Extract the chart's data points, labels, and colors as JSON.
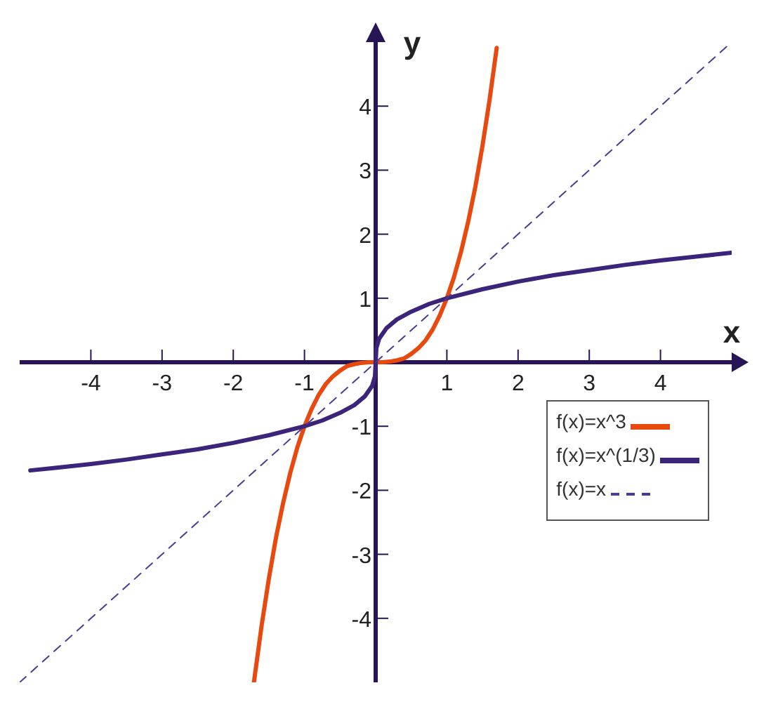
{
  "chart_data": {
    "type": "line",
    "xlabel": "x",
    "ylabel": "y",
    "xlim": [
      -5,
      5
    ],
    "ylim": [
      -5,
      5
    ],
    "xticks": [
      -4,
      -3,
      -2,
      -1,
      1,
      2,
      3,
      4
    ],
    "yticks": [
      -4,
      -3,
      -2,
      -1,
      1,
      2,
      3,
      4
    ],
    "grid": false,
    "legend": "bottom right",
    "marker": "none",
    "series": [
      {
        "name": "f(x)=x^3",
        "color": "#e8490f",
        "line_style": "solid",
        "x": [
          -1.71,
          -1.6,
          -1.5,
          -1.4,
          -1.3,
          -1.2,
          -1.1,
          -1,
          -0.9,
          -0.8,
          -0.7,
          -0.6,
          -0.5,
          -0.4,
          -0.3,
          -0.2,
          -0.1,
          0,
          0.1,
          0.2,
          0.3,
          0.4,
          0.5,
          0.6,
          0.7,
          0.8,
          0.9,
          1,
          1.1,
          1.2,
          1.3,
          1.4,
          1.5,
          1.6,
          1.7
        ],
        "values": [
          -5,
          -4.1,
          -3.38,
          -2.74,
          -2.2,
          -1.73,
          -1.33,
          -1,
          -0.73,
          -0.51,
          -0.34,
          -0.22,
          -0.13,
          -0.06,
          -0.03,
          -0.01,
          0,
          0,
          0,
          0.01,
          0.03,
          0.06,
          0.13,
          0.22,
          0.34,
          0.51,
          0.73,
          1,
          1.33,
          1.73,
          2.2,
          2.74,
          3.38,
          4.1,
          4.91
        ]
      },
      {
        "name": "f(x)=x^(1/3)",
        "color": "#3b2479",
        "line_style": "solid",
        "x": [
          -4.85,
          -4.5,
          -4,
          -3.5,
          -3,
          -2.5,
          -2,
          -1.5,
          -1,
          -0.75,
          -0.5,
          -0.3,
          -0.15,
          -0.05,
          -0.01,
          0,
          0.01,
          0.05,
          0.15,
          0.3,
          0.5,
          0.75,
          1,
          1.5,
          2,
          2.5,
          3,
          3.5,
          4,
          4.5,
          5
        ],
        "values": [
          -1.69,
          -1.65,
          -1.59,
          -1.52,
          -1.44,
          -1.36,
          -1.26,
          -1.14,
          -1,
          -0.91,
          -0.79,
          -0.67,
          -0.53,
          -0.37,
          -0.22,
          0,
          0.22,
          0.37,
          0.53,
          0.67,
          0.79,
          0.91,
          1,
          1.14,
          1.26,
          1.36,
          1.44,
          1.52,
          1.59,
          1.65,
          1.71
        ]
      },
      {
        "name": "f(x)=x",
        "color": "#4a3c96",
        "line_style": "dashed",
        "x": [
          -5,
          5
        ],
        "values": [
          -5,
          5
        ]
      }
    ]
  }
}
